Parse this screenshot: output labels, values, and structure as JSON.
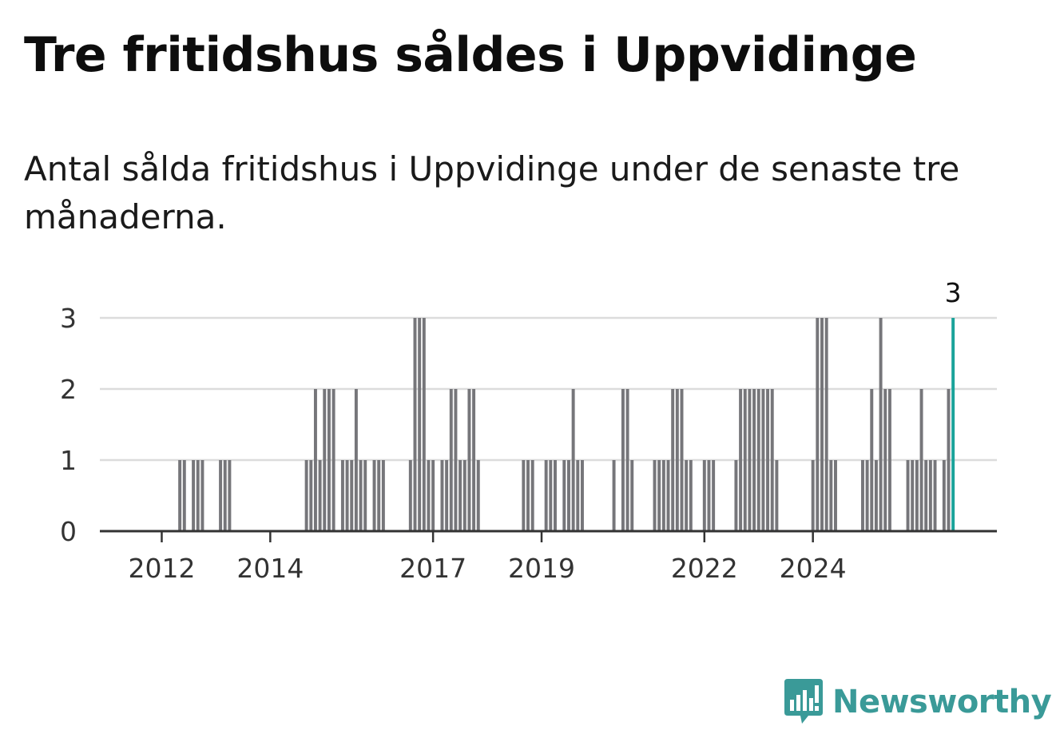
{
  "title": "Tre fritidshus såldes i Uppvidinge",
  "subtitle": "Antal sålda fritidshus i Uppvidinge under de senaste tre månaderna.",
  "logo": {
    "text": "Newsworthy",
    "color": "#3a9a98"
  },
  "chart_data": {
    "type": "bar",
    "title": "Tre fritidshus såldes i Uppvidinge",
    "subtitle": "Antal sålda fritidshus i Uppvidinge under de senaste tre månaderna.",
    "xlabel": "",
    "ylabel": "",
    "ylim": [
      0,
      3
    ],
    "yticks": [
      0,
      1,
      2,
      3
    ],
    "xticks": [
      "2012",
      "2014",
      "2017",
      "2019",
      "2022",
      "2024"
    ],
    "grid": true,
    "bar_color": "#76767a",
    "highlight_color": "#1aa39a",
    "highlight_label": "3",
    "start": "2011-09",
    "end": "2025-01",
    "series": [
      {
        "values": [
          0,
          0,
          0,
          0,
          0,
          0,
          0,
          0,
          1,
          1,
          0,
          1,
          1,
          1,
          0,
          0,
          0,
          1,
          1,
          1,
          0,
          0,
          0,
          0,
          0,
          0,
          0,
          0,
          0,
          0,
          0,
          0,
          0,
          0,
          0,
          0,
          1,
          1,
          2,
          1,
          2,
          2,
          2,
          0,
          1,
          1,
          1,
          2,
          1,
          1,
          0,
          1,
          1,
          1,
          0,
          0,
          0,
          0,
          0,
          1,
          3,
          3,
          3,
          1,
          1,
          0,
          1,
          1,
          2,
          2,
          1,
          1,
          2,
          2,
          1,
          0,
          0,
          0,
          0,
          0,
          0,
          0,
          0,
          0,
          1,
          1,
          1,
          0,
          0,
          1,
          1,
          1,
          0,
          1,
          1,
          2,
          1,
          1,
          0,
          0,
          0,
          0,
          0,
          0,
          1,
          0,
          2,
          2,
          1,
          0,
          0,
          0,
          0,
          1,
          1,
          1,
          1,
          2,
          2,
          2,
          1,
          1,
          0,
          0,
          1,
          1,
          1,
          0,
          0,
          0,
          0,
          1,
          2,
          2,
          2,
          2,
          2,
          2,
          2,
          2,
          1,
          0,
          0,
          0,
          0,
          0,
          0,
          0,
          1,
          3,
          3,
          3,
          1,
          1,
          0,
          0,
          0,
          0,
          0,
          1,
          1,
          2,
          1,
          3,
          2,
          2,
          0,
          0,
          0,
          1,
          1,
          1,
          2,
          1,
          1,
          1,
          0,
          1,
          2,
          3
        ]
      }
    ]
  }
}
